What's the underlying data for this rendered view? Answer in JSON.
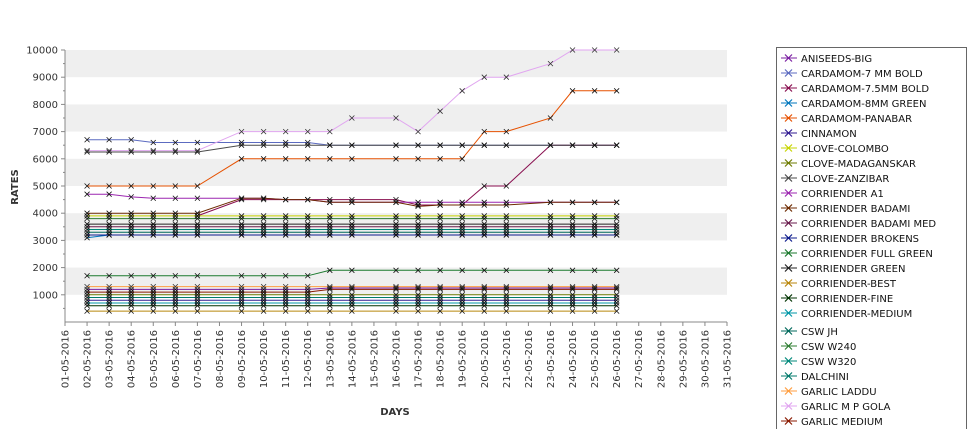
{
  "chart_data": {
    "type": "line",
    "title": "",
    "xlabel": "DAYS",
    "ylabel": "RATES",
    "ylim": [
      0,
      10000
    ],
    "yticks": [
      "1000",
      "2000",
      "3000",
      "4000",
      "5000",
      "6000",
      "7000",
      "8000",
      "9000",
      "10000"
    ],
    "grid": "horizontal alternating bands",
    "legend_position": "right",
    "x": [
      "01-05-2016",
      "02-05-2016",
      "03-05-2016",
      "04-05-2016",
      "05-05-2016",
      "06-05-2016",
      "07-05-2016",
      "08-05-2016",
      "09-05-2016",
      "10-05-2016",
      "11-05-2016",
      "12-05-2016",
      "13-05-2016",
      "14-05-2016",
      "15-05-2016",
      "16-05-2016",
      "17-05-2016",
      "18-05-2016",
      "19-05-2016",
      "20-05-2016",
      "21-05-2016",
      "22-05-2016",
      "23-05-2016",
      "24-05-2016",
      "25-05-2016",
      "26-05-2016",
      "27-05-2016",
      "28-05-2016",
      "29-05-2016",
      "30-05-2016",
      "31-05-2016"
    ],
    "series": [
      {
        "name": "ANISEEDS-BIG",
        "color": "#7b1fa2",
        "values": [
          null,
          1200,
          1200,
          1200,
          1200,
          1200,
          1200,
          null,
          1200,
          1200,
          1200,
          1200,
          1250,
          1250,
          null,
          1250,
          1250,
          1250,
          1250,
          1250,
          1250,
          null,
          1250,
          1250,
          1250,
          1250,
          null,
          null,
          null,
          null,
          null
        ]
      },
      {
        "name": "CARDAMOM-7 MM BOLD",
        "color": "#5c6bc0",
        "values": [
          null,
          6700,
          6700,
          6700,
          6600,
          6600,
          6600,
          null,
          6600,
          6600,
          6600,
          6600,
          6500,
          6500,
          null,
          6500,
          6500,
          6500,
          6500,
          6500,
          6500,
          null,
          6500,
          6500,
          6500,
          6500,
          null,
          null,
          null,
          null,
          null
        ]
      },
      {
        "name": "CARDAMOM-7.5MM BOLD",
        "color": "#880e4f",
        "values": [
          null,
          null,
          null,
          null,
          null,
          null,
          3900,
          null,
          4500,
          4500,
          4500,
          4500,
          4500,
          4500,
          null,
          4500,
          4300,
          4300,
          4300,
          5000,
          5000,
          null,
          6500,
          6500,
          6500,
          6500,
          null,
          null,
          null,
          null,
          null
        ]
      },
      {
        "name": "CARDAMOM-8MM GREEN",
        "color": "#0277bd",
        "values": [
          null,
          3100,
          3200,
          3200,
          3200,
          3200,
          3200,
          null,
          3200,
          3200,
          3200,
          3200,
          3200,
          3200,
          null,
          3200,
          3200,
          3200,
          3200,
          3200,
          3200,
          null,
          3200,
          3200,
          3200,
          3200,
          null,
          null,
          null,
          null,
          null
        ]
      },
      {
        "name": "CARDAMOM-PANABAR",
        "color": "#e65100",
        "values": [
          null,
          5000,
          5000,
          5000,
          5000,
          5000,
          5000,
          null,
          6000,
          6000,
          6000,
          6000,
          6000,
          6000,
          null,
          6000,
          6000,
          6000,
          6000,
          7000,
          7000,
          null,
          7500,
          8500,
          8500,
          8500,
          null,
          null,
          null,
          null,
          null
        ]
      },
      {
        "name": "CINNAMON",
        "color": "#311b92",
        "values": [
          null,
          800,
          800,
          800,
          800,
          800,
          800,
          null,
          800,
          800,
          800,
          800,
          800,
          800,
          null,
          800,
          800,
          800,
          800,
          800,
          800,
          null,
          800,
          800,
          800,
          800,
          null,
          null,
          null,
          null,
          null
        ]
      },
      {
        "name": "CLOVE-COLOMBO",
        "color": "#c6d400",
        "values": [
          null,
          3900,
          3900,
          3900,
          3900,
          3900,
          3900,
          null,
          3900,
          3900,
          3900,
          3900,
          3900,
          3900,
          null,
          3900,
          3900,
          3900,
          3900,
          3900,
          3900,
          null,
          3900,
          3900,
          3900,
          3900,
          null,
          null,
          null,
          null,
          null
        ]
      },
      {
        "name": "CLOVE-MADAGANSKAR",
        "color": "#6d7b00",
        "values": [
          null,
          1000,
          1000,
          1000,
          1000,
          1000,
          1000,
          null,
          1000,
          1000,
          1000,
          1000,
          1000,
          1000,
          null,
          1000,
          1000,
          1000,
          1000,
          1000,
          1000,
          null,
          1000,
          1000,
          1000,
          1000,
          null,
          null,
          null,
          null,
          null
        ]
      },
      {
        "name": "CLOVE-ZANZIBAR",
        "color": "#4a4a4a",
        "values": [
          null,
          6250,
          6250,
          6250,
          6250,
          6250,
          6250,
          null,
          6500,
          6500,
          6500,
          6500,
          6500,
          6500,
          null,
          6500,
          6500,
          6500,
          6500,
          6500,
          6500,
          null,
          6500,
          6500,
          6500,
          6500,
          null,
          null,
          null,
          null,
          null
        ]
      },
      {
        "name": "CORRIENDER A1",
        "color": "#9c27b0",
        "values": [
          null,
          4700,
          4700,
          4600,
          4550,
          4550,
          4550,
          null,
          4550,
          4550,
          4500,
          4500,
          4400,
          4400,
          null,
          4400,
          4400,
          4400,
          4400,
          4400,
          4400,
          null,
          4400,
          4400,
          4400,
          4400,
          null,
          null,
          null,
          null,
          null
        ]
      },
      {
        "name": "CORRIENDER BADAMI",
        "color": "#6d2a00",
        "values": [
          null,
          4000,
          4000,
          4000,
          4000,
          4000,
          4000,
          null,
          4550,
          4550,
          4500,
          4500,
          4400,
          4400,
          null,
          4400,
          4250,
          4300,
          4300,
          4300,
          4300,
          null,
          4400,
          4400,
          4400,
          4400,
          null,
          null,
          null,
          null,
          null
        ]
      },
      {
        "name": "CORRIENDER BADAMI MED",
        "color": "#6a1b4d",
        "values": [
          null,
          3500,
          3500,
          3500,
          3500,
          3500,
          3500,
          null,
          3500,
          3500,
          3500,
          3500,
          3500,
          3500,
          null,
          3500,
          3500,
          3500,
          3500,
          3500,
          3500,
          null,
          3500,
          3500,
          3500,
          3500,
          null,
          null,
          null,
          null,
          null
        ]
      },
      {
        "name": "CORRIENDER BROKENS",
        "color": "#0d1b8c",
        "values": [
          null,
          3200,
          3200,
          3200,
          3200,
          3200,
          3200,
          null,
          3200,
          3200,
          3200,
          3200,
          3200,
          3200,
          null,
          3200,
          3200,
          3200,
          3200,
          3200,
          3200,
          null,
          3200,
          3200,
          3200,
          3200,
          null,
          null,
          null,
          null,
          null
        ]
      },
      {
        "name": "CORRIENDER FULL GREEN",
        "color": "#1b7a2e",
        "values": [
          null,
          1700,
          1700,
          1700,
          1700,
          1700,
          1700,
          null,
          1700,
          1700,
          1700,
          1700,
          1900,
          1900,
          null,
          1900,
          1900,
          1900,
          1900,
          1900,
          1900,
          null,
          1900,
          1900,
          1900,
          1900,
          null,
          null,
          null,
          null,
          null
        ]
      },
      {
        "name": "CORRIENDER GREEN",
        "color": "#222222",
        "values": [
          null,
          3600,
          3600,
          3600,
          3600,
          3600,
          3600,
          null,
          3600,
          3600,
          3600,
          3600,
          3600,
          3600,
          null,
          3600,
          3600,
          3600,
          3600,
          3600,
          3600,
          null,
          3600,
          3600,
          3600,
          3600,
          null,
          null,
          null,
          null,
          null
        ]
      },
      {
        "name": "CORRIENDER-BEST",
        "color": "#b8860b",
        "values": [
          null,
          400,
          400,
          400,
          400,
          400,
          400,
          null,
          400,
          400,
          400,
          400,
          400,
          400,
          null,
          400,
          400,
          400,
          400,
          400,
          400,
          null,
          400,
          400,
          400,
          400,
          null,
          null,
          null,
          null,
          null
        ]
      },
      {
        "name": "CORRIENDER-FINE",
        "color": "#003300",
        "values": [
          null,
          600,
          600,
          600,
          600,
          600,
          600,
          null,
          600,
          600,
          600,
          600,
          600,
          600,
          null,
          600,
          600,
          600,
          600,
          600,
          600,
          null,
          600,
          600,
          600,
          600,
          null,
          null,
          null,
          null,
          null
        ]
      },
      {
        "name": "CORRIENDER-MEDIUM",
        "color": "#0097a7",
        "values": [
          null,
          700,
          700,
          700,
          700,
          700,
          700,
          null,
          700,
          700,
          700,
          700,
          700,
          700,
          null,
          700,
          700,
          700,
          700,
          700,
          700,
          null,
          700,
          700,
          700,
          700,
          null,
          null,
          null,
          null,
          null
        ]
      },
      {
        "name": "CSW JH",
        "color": "#00695c",
        "values": [
          null,
          3300,
          3300,
          3300,
          3300,
          3300,
          3300,
          null,
          3300,
          3300,
          3300,
          3300,
          3300,
          3300,
          null,
          3300,
          3300,
          3300,
          3300,
          3300,
          3300,
          null,
          3300,
          3300,
          3300,
          3300,
          null,
          null,
          null,
          null,
          null
        ]
      },
      {
        "name": "CSW W240",
        "color": "#2e7d32",
        "values": [
          null,
          3800,
          3800,
          3800,
          3800,
          3800,
          3800,
          null,
          3800,
          3800,
          3800,
          3800,
          3800,
          3800,
          null,
          3800,
          3800,
          3800,
          3800,
          3800,
          3800,
          null,
          3800,
          3800,
          3800,
          3800,
          null,
          null,
          null,
          null,
          null
        ]
      },
      {
        "name": "CSW W320",
        "color": "#00897b",
        "values": [
          null,
          3400,
          3400,
          3400,
          3400,
          3400,
          3400,
          null,
          3400,
          3400,
          3400,
          3400,
          3400,
          3400,
          null,
          3400,
          3400,
          3400,
          3400,
          3400,
          3400,
          null,
          3400,
          3400,
          3400,
          3400,
          null,
          null,
          null,
          null,
          null
        ]
      },
      {
        "name": "DALCHINI",
        "color": "#00796b",
        "values": [
          null,
          900,
          900,
          900,
          900,
          900,
          900,
          null,
          900,
          900,
          900,
          900,
          900,
          900,
          null,
          900,
          900,
          900,
          900,
          900,
          900,
          null,
          900,
          900,
          900,
          900,
          null,
          null,
          null,
          null,
          null
        ]
      },
      {
        "name": "GARLIC LADDU",
        "color": "#ff9e40",
        "values": [
          null,
          1300,
          1300,
          1300,
          1300,
          1300,
          1300,
          null,
          1300,
          1300,
          1300,
          1300,
          1300,
          1300,
          null,
          1300,
          1300,
          1300,
          1300,
          1300,
          1300,
          null,
          1300,
          1300,
          1300,
          1300,
          null,
          null,
          null,
          null,
          null
        ]
      },
      {
        "name": "GARLIC M P GOLA",
        "color": "#e1a6f0",
        "values": [
          null,
          6300,
          6300,
          6300,
          6300,
          6300,
          6300,
          null,
          7000,
          7000,
          7000,
          7000,
          7000,
          7500,
          null,
          7500,
          7000,
          7750,
          8500,
          9000,
          9000,
          null,
          9500,
          10000,
          10000,
          10000,
          null,
          null,
          null,
          null,
          null
        ]
      },
      {
        "name": "GARLIC MEDIUM",
        "color": "#8b1a00",
        "values": [
          null,
          1100,
          1100,
          1100,
          1100,
          1100,
          1100,
          null,
          1100,
          1100,
          1100,
          1100,
          1200,
          1200,
          null,
          1200,
          1200,
          1200,
          1200,
          1200,
          1200,
          null,
          1200,
          1200,
          1200,
          1200,
          null,
          null,
          null,
          null,
          null
        ]
      }
    ]
  }
}
